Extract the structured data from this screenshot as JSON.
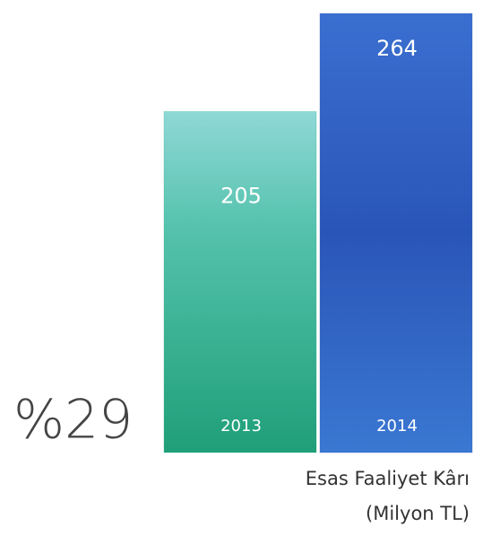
{
  "chart_data": {
    "type": "bar",
    "title": "Esas Faaliyet Kârı",
    "subtitle": "(Milyon TL)",
    "annotation": "%29",
    "categories": [
      "2013",
      "2014"
    ],
    "values": [
      205,
      264
    ],
    "colors": [
      "#2eb190",
      "#2f60c2"
    ]
  }
}
